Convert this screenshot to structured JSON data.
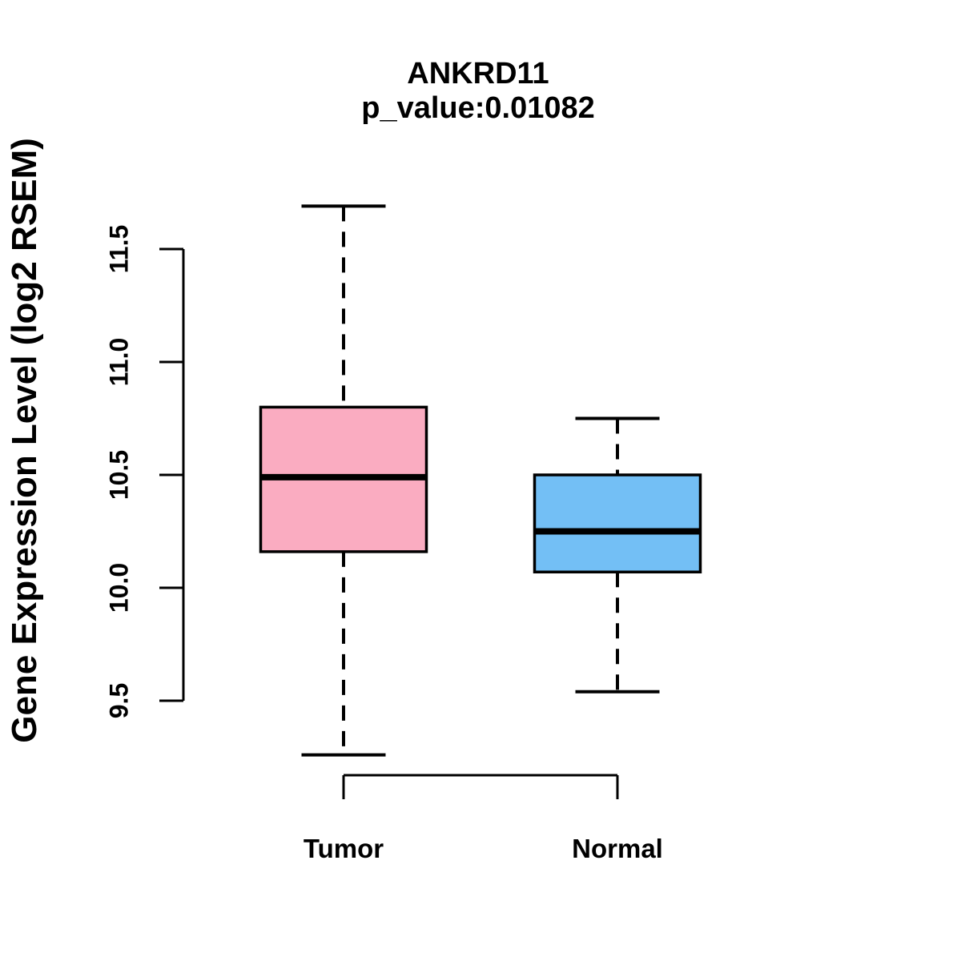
{
  "title": {
    "gene": "ANKRD11",
    "pvalue": "p_value:0.01082"
  },
  "y_axis": {
    "label": "Gene Expression Level (log2 RSEM)",
    "ticks": [
      "9.5",
      "10.0",
      "10.5",
      "11.0",
      "11.5"
    ]
  },
  "x_axis": {
    "categories": [
      "Tumor",
      "Normal"
    ]
  },
  "colors": {
    "tumor_fill": "#FAACC1",
    "normal_fill": "#73BFF5",
    "stroke": "#000000",
    "background": "#FFFFFF"
  },
  "chart_data": {
    "type": "boxplot",
    "title": "ANKRD11",
    "subtitle": "p_value:0.01082",
    "ylabel": "Gene Expression Level (log2 RSEM)",
    "categories": [
      "Tumor",
      "Normal"
    ],
    "yticks": [
      9.5,
      10.0,
      10.5,
      11.0,
      11.5
    ],
    "ylim": [
      9.2,
      11.8
    ],
    "grid": false,
    "legend": "none",
    "series": [
      {
        "name": "Tumor",
        "color": "#FAACC1",
        "whisker_low": 9.26,
        "q1": 10.16,
        "median": 10.49,
        "q3": 10.8,
        "whisker_high": 11.69
      },
      {
        "name": "Normal",
        "color": "#73BFF5",
        "whisker_low": 9.54,
        "q1": 10.07,
        "median": 10.25,
        "q3": 10.5,
        "whisker_high": 10.75
      }
    ]
  }
}
